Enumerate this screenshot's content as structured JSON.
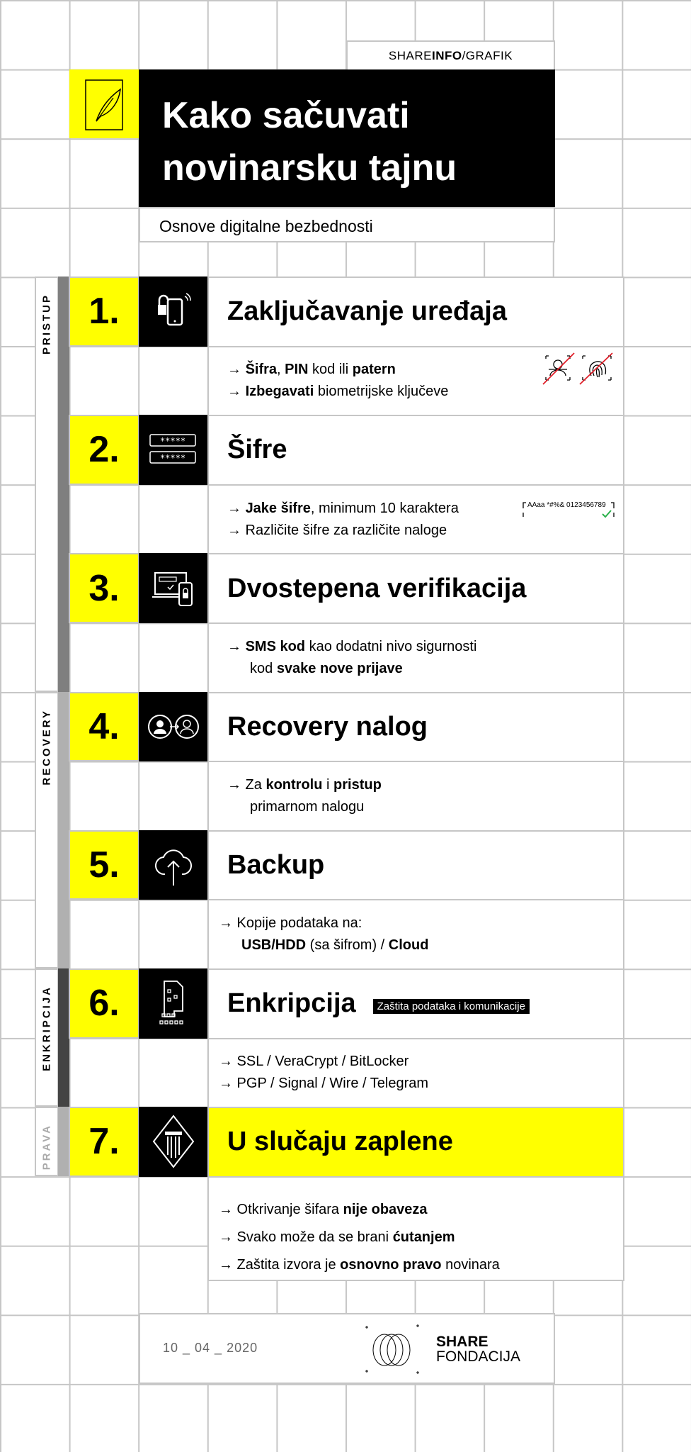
{
  "header": {
    "tag_prefix": "SHARE ",
    "tag_bold": "INFO",
    "tag_suffix": "/GRAFIK",
    "title_line1": "Kako sačuvati",
    "title_line2": "novinarsku tajnu",
    "subtitle": "Osnove digitalne bezbednosti",
    "icon": "feather-icon"
  },
  "colors": {
    "accent": "#ffff00",
    "black": "#000000",
    "grid": "#c6c6c6"
  },
  "groups": [
    {
      "label": "PRISTUP",
      "bar": "#7f7f7f",
      "text": "#000000"
    },
    {
      "label": "RECOVERY",
      "bar": "#b0b0b0",
      "text": "#000000"
    },
    {
      "label": "ENKRIPCIJA",
      "bar": "#444444",
      "text": "#000000"
    },
    {
      "label": "PRAVA",
      "bar": "#b0b0b0",
      "text": "#aaaaaa"
    }
  ],
  "sections": [
    {
      "number": "1.",
      "title": "Zaključavanje uređaja",
      "icon": "phone-lock-icon",
      "lines": [
        {
          "seg": [
            [
              "→ ",
              0
            ],
            [
              "Šifra",
              1
            ],
            [
              ", ",
              0
            ],
            [
              "PIN",
              1
            ],
            [
              " kod ili ",
              0
            ],
            [
              "patern",
              1
            ]
          ]
        },
        {
          "seg": [
            [
              "→ ",
              0
            ],
            [
              "Izbegavati",
              1
            ],
            [
              " biometrijske ključeve",
              0
            ]
          ]
        }
      ],
      "extra_icon": "no-biometrics-icon"
    },
    {
      "number": "2.",
      "title": "Šifre",
      "icon": "password-fields-icon",
      "lines": [
        {
          "seg": [
            [
              "→ ",
              0
            ],
            [
              "Jake šifre",
              1
            ],
            [
              ", minimum 10 karaktera",
              0
            ]
          ]
        },
        {
          "seg": [
            [
              "→ Različite šifre za različite naloge",
              0
            ]
          ]
        }
      ],
      "extra_icon": "strong-password-icon",
      "extra_text": "AAaa *#%& 0123456789"
    },
    {
      "number": "3.",
      "title": "Dvostepena verifikacija",
      "icon": "two-factor-devices-icon",
      "lines": [
        {
          "seg": [
            [
              "→ ",
              0
            ],
            [
              "SMS kod",
              1
            ],
            [
              " kao dodatni nivo sigurnosti",
              0
            ]
          ]
        },
        {
          "seg": [
            [
              "kod ",
              0
            ],
            [
              "svake nove prijave",
              1
            ]
          ],
          "indent": true
        }
      ]
    },
    {
      "number": "4.",
      "title": "Recovery nalog",
      "icon": "account-transfer-icon",
      "lines": [
        {
          "seg": [
            [
              "→ Za ",
              0
            ],
            [
              "kontrolu",
              1
            ],
            [
              " i ",
              0
            ],
            [
              "pristup",
              1
            ]
          ]
        },
        {
          "seg": [
            [
              "primarnom nalogu",
              0
            ]
          ],
          "indent": true
        }
      ]
    },
    {
      "number": "5.",
      "title": "Backup",
      "icon": "cloud-upload-icon",
      "lines": [
        {
          "seg": [
            [
              "→ Kopije podataka na:",
              0
            ]
          ]
        },
        {
          "seg": [
            [
              "USB/HDD",
              1
            ],
            [
              " (sa šifrom) / ",
              0
            ],
            [
              "Cloud",
              1
            ]
          ],
          "indent": true
        }
      ]
    },
    {
      "number": "6.",
      "title": "Enkripcija",
      "badge": "Zaštita podataka i komunikacije",
      "icon": "encrypted-file-icon",
      "lines": [
        {
          "seg": [
            [
              "→ SSL / VeraCrypt / BitLocker",
              0
            ]
          ]
        },
        {
          "seg": [
            [
              "→ PGP / Signal / Wire / Telegram",
              0
            ]
          ]
        }
      ]
    },
    {
      "number": "7.",
      "title": "U slučaju zaplene",
      "icon": "law-column-icon",
      "highlight": true,
      "lines": [
        {
          "seg": [
            [
              "→ Otkrivanje šifara ",
              0
            ],
            [
              "nije obaveza",
              1
            ]
          ]
        },
        {
          "seg": [
            [
              "→ Svako može da se brani ",
              0
            ],
            [
              "ćutanjem",
              1
            ]
          ]
        },
        {
          "seg": [
            [
              "→ Zaštita izvora je ",
              0
            ],
            [
              "osnovno pravo",
              1
            ],
            [
              " novinara",
              0
            ]
          ]
        }
      ]
    }
  ],
  "footer": {
    "date": "10 _ 04 _ 2020",
    "logo_line1": "SHARE",
    "logo_line2": "FONDACIJA"
  }
}
